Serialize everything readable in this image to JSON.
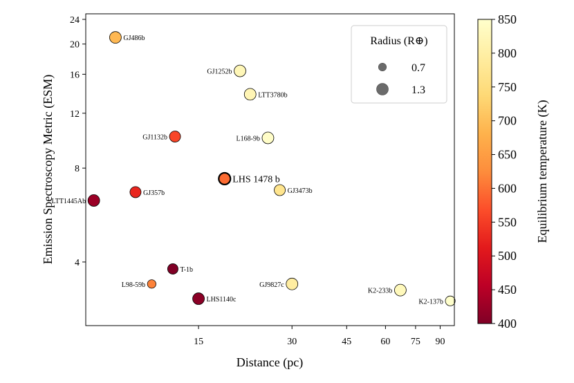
{
  "chart_data": {
    "type": "scatter",
    "xlabel": "Distance (pc)",
    "ylabel": "Emission Spectroscopy Metric (ESM)",
    "xscale": "log",
    "yscale": "log",
    "xlim": [
      6.5,
      100
    ],
    "ylim": [
      2.5,
      25
    ],
    "xticks": [
      15,
      30,
      45,
      60,
      75,
      90
    ],
    "yticks": [
      4,
      8,
      12,
      16,
      20,
      24
    ],
    "colorbar": {
      "label": "Equilibrium temperature (K)",
      "min": 400,
      "max": 850,
      "ticks": [
        400,
        450,
        500,
        550,
        600,
        650,
        700,
        750,
        800,
        850
      ],
      "colormap": "YlOrRd"
    },
    "legend": {
      "title": "Radius (R⊕)",
      "position": "top-right",
      "entries": [
        {
          "label": "0.7",
          "radius": 0.7
        },
        {
          "label": "1.3",
          "radius": 1.3
        }
      ]
    },
    "points": [
      {
        "name": "GJ486b",
        "distance": 8.1,
        "esm": 21.0,
        "teq": 690,
        "radius": 1.3,
        "label_side": "right"
      },
      {
        "name": "GJ1252b",
        "distance": 20.4,
        "esm": 16.4,
        "teq": 825,
        "radius": 1.3,
        "label_side": "left"
      },
      {
        "name": "LTT3780b",
        "distance": 22.0,
        "esm": 13.8,
        "teq": 820,
        "radius": 1.3,
        "label_side": "right"
      },
      {
        "name": "GJ1132b",
        "distance": 12.6,
        "esm": 10.1,
        "teq": 560,
        "radius": 1.2,
        "label_side": "left"
      },
      {
        "name": "L168-9b",
        "distance": 25.1,
        "esm": 10.0,
        "teq": 845,
        "radius": 1.3,
        "label_side": "left"
      },
      {
        "name": "LHS 1478 b",
        "distance": 18.2,
        "esm": 7.4,
        "teq": 595,
        "radius": 1.3,
        "label_side": "right",
        "highlight": true
      },
      {
        "name": "GJ3473b",
        "distance": 27.4,
        "esm": 6.8,
        "teq": 770,
        "radius": 1.2,
        "label_side": "right"
      },
      {
        "name": "GJ357b",
        "distance": 9.4,
        "esm": 6.7,
        "teq": 525,
        "radius": 1.2,
        "label_side": "right"
      },
      {
        "name": "LTT1445Ab",
        "distance": 6.9,
        "esm": 6.3,
        "teq": 425,
        "radius": 1.3,
        "label_side": "left"
      },
      {
        "name": "T-1b",
        "distance": 12.4,
        "esm": 3.8,
        "teq": 400,
        "radius": 1.1,
        "label_side": "right"
      },
      {
        "name": "L98-59b",
        "distance": 10.6,
        "esm": 3.4,
        "teq": 615,
        "radius": 0.8,
        "label_side": "left"
      },
      {
        "name": "GJ9827c",
        "distance": 30.0,
        "esm": 3.4,
        "teq": 795,
        "radius": 1.3,
        "label_side": "left"
      },
      {
        "name": "LHS1140c",
        "distance": 15.0,
        "esm": 3.05,
        "teq": 410,
        "radius": 1.3,
        "label_side": "right"
      },
      {
        "name": "K2-233b",
        "distance": 67.0,
        "esm": 3.25,
        "teq": 830,
        "radius": 1.3,
        "label_side": "left"
      },
      {
        "name": "K2-137b",
        "distance": 97.0,
        "esm": 3.0,
        "teq": 850,
        "radius": 1.0,
        "label_side": "left"
      }
    ]
  }
}
